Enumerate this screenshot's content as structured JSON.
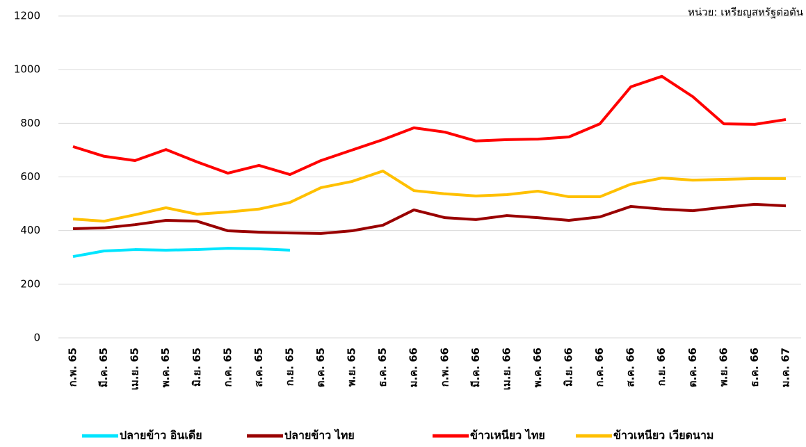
{
  "chart_data": {
    "type": "line",
    "unit_label": "หน่วย: เหรียญสหรัฐต่อตัน",
    "categories": [
      "ก.พ. 65",
      "มี.ค. 65",
      "เม.ย. 65",
      "พ.ค. 65",
      "มิ.ย. 65",
      "ก.ค. 65",
      "ส.ค. 65",
      "ก.ย. 65",
      "ต.ค. 65",
      "พ.ย. 65",
      "ธ.ค. 65",
      "ม.ค. 66",
      "ก.พ. 66",
      "มี.ค. 66",
      "เม.ย. 66",
      "พ.ค. 66",
      "มิ.ย. 66",
      "ก.ค. 66",
      "ส.ค. 66",
      "ก.ย. 66",
      "ต.ค. 66",
      "พ.ย. 66",
      "ธ.ค. 66",
      "ม.ค. 67"
    ],
    "series": [
      {
        "name": "ปลายข้าว อินเดีย",
        "color": "#00e5ff",
        "values": [
          303,
          324,
          329,
          327,
          329,
          334,
          332,
          327,
          null,
          null,
          null,
          null,
          null,
          null,
          null,
          null,
          null,
          null,
          null,
          null,
          null,
          null,
          null,
          null
        ]
      },
      {
        "name": "ปลายข้าว ไทย",
        "color": "#990000",
        "values": [
          407,
          410,
          422,
          438,
          435,
          399,
          394,
          391,
          389,
          399,
          420,
          477,
          448,
          441,
          456,
          448,
          438,
          451,
          490,
          480,
          474,
          487,
          498,
          492
        ]
      },
      {
        "name": "ข้าวเหนียว ไทย",
        "color": "#ff0000",
        "values": [
          713,
          677,
          661,
          702,
          656,
          614,
          643,
          609,
          661,
          700,
          739,
          783,
          767,
          734,
          739,
          741,
          749,
          798,
          936,
          975,
          899,
          798,
          796,
          814
        ]
      },
      {
        "name": "ข้าวเหนียว เวียดนาม",
        "color": "#ffc000",
        "values": [
          443,
          435,
          459,
          485,
          461,
          469,
          480,
          505,
          560,
          583,
          622,
          549,
          537,
          529,
          534,
          547,
          526,
          526,
          573,
          596,
          588,
          591,
          594,
          594
        ]
      }
    ],
    "ylim": [
      0,
      1200
    ],
    "yticks": [
      0,
      200,
      400,
      600,
      800,
      1000,
      1200
    ],
    "grid": true,
    "legend": "bottom"
  }
}
